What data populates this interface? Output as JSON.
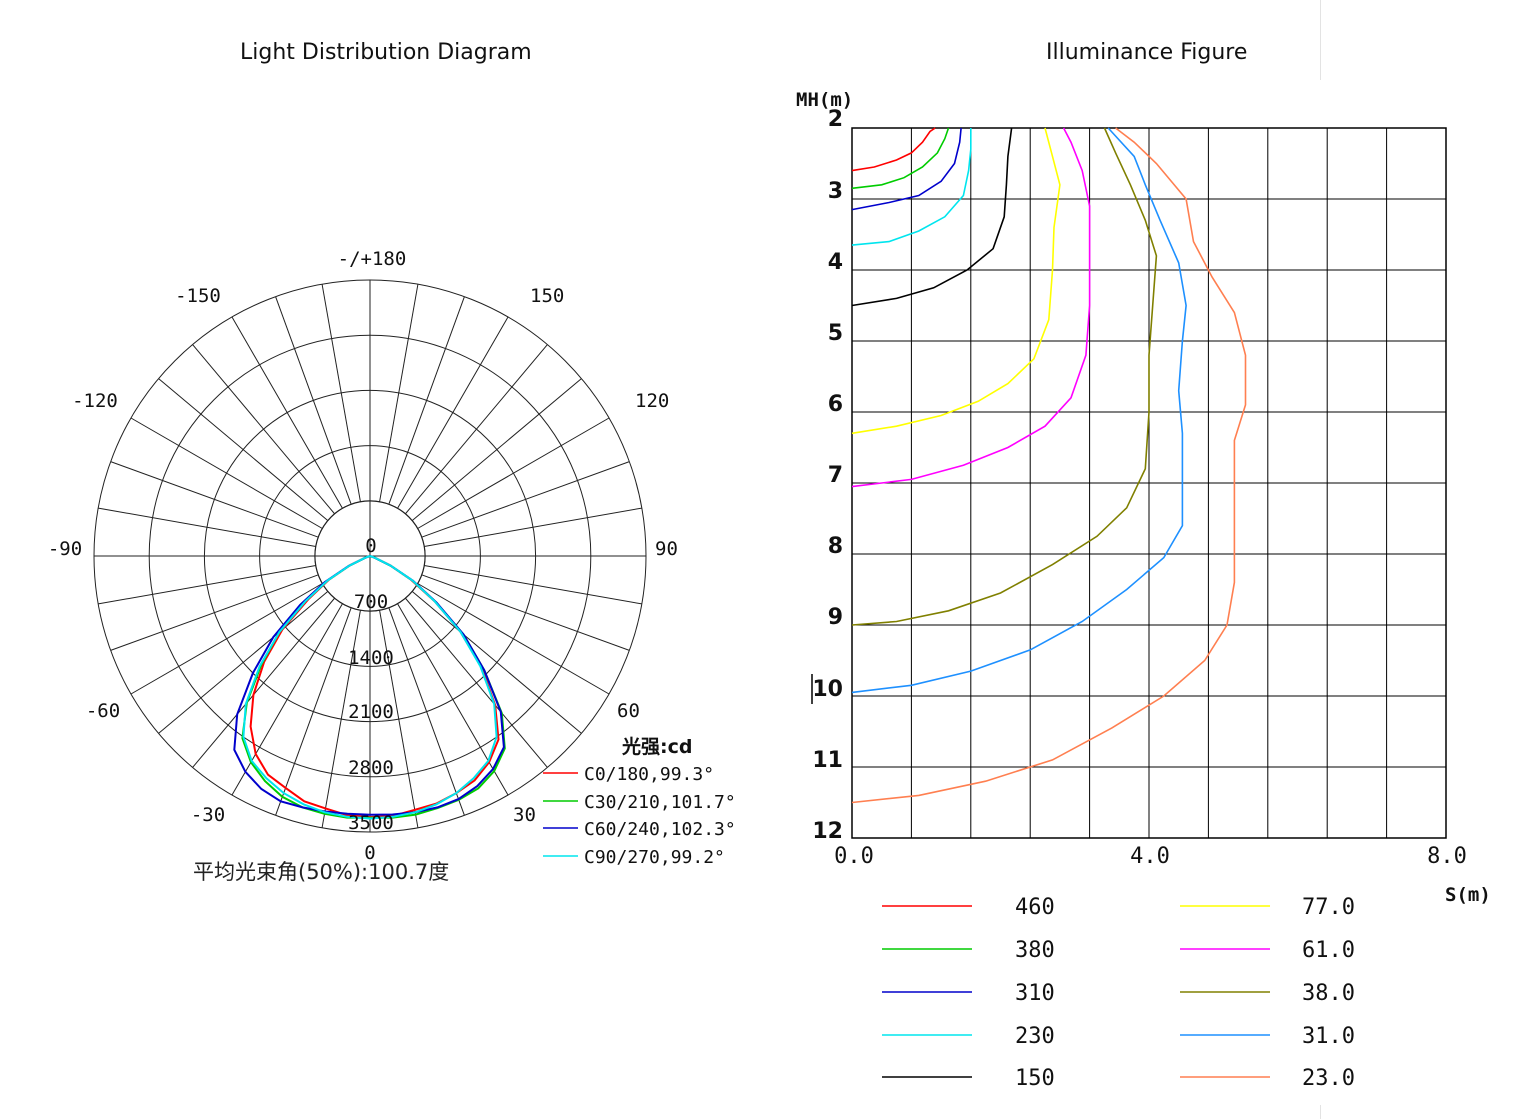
{
  "polar": {
    "title": "Light Distribution Diagram",
    "angle_labels": [
      "-/+180",
      "150",
      "120",
      "90",
      "60",
      "30",
      "0",
      "-30",
      "-60",
      "-90",
      "-120",
      "-150"
    ],
    "ring_labels": [
      "0",
      "700",
      "1400",
      "2100",
      "2800",
      "3500"
    ],
    "legend_title": "光强:cd",
    "legend": [
      "C0/180,99.3°",
      "C30/210,101.7°",
      "C60/240,102.3°",
      "C90/270,99.2°"
    ],
    "footer": "平均光束角(50%):100.7度"
  },
  "illuminance": {
    "title": "Illuminance Figure",
    "y_axis_label": "MH(m)",
    "x_axis_label": "S(m)",
    "y_tick_labels": [
      "2",
      "3",
      "4",
      "5",
      "6",
      "7",
      "8",
      "9",
      "10",
      "11",
      "12"
    ],
    "x_tick_labels": [
      "0.0",
      "4.0",
      "8.0"
    ],
    "legend": [
      "460",
      "380",
      "310",
      "230",
      "150",
      "77.0",
      "61.0",
      "38.0",
      "31.0",
      "23.0"
    ]
  },
  "chart_data": [
    {
      "type": "polar",
      "title": "Light Distribution Diagram",
      "unit": "cd",
      "radial_range": [
        0,
        3500
      ],
      "radial_ticks": [
        0,
        700,
        1400,
        2100,
        2800,
        3500
      ],
      "angle_ticks": [
        -180,
        -150,
        -120,
        -90,
        -60,
        -30,
        0,
        30,
        60,
        90,
        120,
        150,
        180
      ],
      "series": [
        {
          "name": "C0/180,99.3°",
          "color": "#ff0000",
          "beam_angle": 99.3,
          "angles": [
            0,
            5,
            10,
            15,
            20,
            25,
            30,
            35,
            40,
            45,
            50,
            55,
            60,
            65,
            70
          ],
          "left": [
            3310,
            3300,
            3250,
            3220,
            3130,
            3060,
            2900,
            2640,
            2300,
            1900,
            1450,
            950,
            600,
            280,
            60
          ],
          "right": [
            3310,
            3310,
            3270,
            3250,
            3200,
            3140,
            3020,
            2840,
            2470,
            2000,
            1500,
            1000,
            600,
            280,
            60
          ]
        },
        {
          "name": "C30/210,101.7°",
          "color": "#00cc00",
          "beam_angle": 101.7,
          "angles": [
            0,
            5,
            10,
            15,
            20,
            25,
            30,
            35,
            40,
            45,
            50,
            55,
            60,
            65,
            70
          ],
          "left": [
            3320,
            3330,
            3320,
            3300,
            3250,
            3150,
            3020,
            2820,
            2430,
            1950,
            1500,
            1000,
            620,
            290,
            60
          ],
          "right": [
            3320,
            3330,
            3330,
            3310,
            3290,
            3250,
            3150,
            2980,
            2600,
            2050,
            1550,
            1020,
            620,
            290,
            60
          ]
        },
        {
          "name": "C60/240,102.3°",
          "color": "#0000cc",
          "beam_angle": 102.3,
          "angles": [
            0,
            5,
            10,
            15,
            20,
            25,
            30,
            35,
            40,
            45,
            50,
            55,
            60,
            65,
            70
          ],
          "left": [
            3280,
            3280,
            3290,
            3300,
            3310,
            3260,
            3160,
            3000,
            2620,
            2100,
            1600,
            1080,
            660,
            300,
            60
          ],
          "right": [
            3280,
            3290,
            3300,
            3300,
            3280,
            3220,
            3120,
            2960,
            2580,
            2050,
            1550,
            1030,
            630,
            290,
            60
          ]
        },
        {
          "name": "C90/270,99.2°",
          "color": "#00e5ee",
          "beam_angle": 99.2,
          "angles": [
            0,
            5,
            10,
            15,
            20,
            25,
            30,
            35,
            40,
            45,
            50,
            55,
            60,
            65,
            70
          ],
          "left": [
            3330,
            3320,
            3300,
            3260,
            3200,
            3110,
            3000,
            2800,
            2450,
            1980,
            1500,
            1000,
            620,
            290,
            60
          ],
          "right": [
            3330,
            3320,
            3300,
            3260,
            3200,
            3110,
            3000,
            2800,
            2450,
            1980,
            1500,
            1000,
            620,
            290,
            60
          ]
        }
      ],
      "legend_position": "bottom-right",
      "grid": true
    },
    {
      "type": "line",
      "title": "Illuminance Figure",
      "xlabel": "S(m)",
      "ylabel": "MH(m)",
      "xlim": [
        0,
        8
      ],
      "ylim": [
        2,
        12
      ],
      "y_inverted": true,
      "grid": true,
      "series": [
        {
          "name": "460",
          "color": "#ff0000",
          "points": [
            [
              0,
              2.6
            ],
            [
              0.3,
              2.55
            ],
            [
              0.6,
              2.45
            ],
            [
              0.8,
              2.35
            ],
            [
              0.95,
              2.2
            ],
            [
              1.05,
              2.05
            ],
            [
              1.12,
              2
            ]
          ]
        },
        {
          "name": "380",
          "color": "#00cc00",
          "points": [
            [
              0,
              2.85
            ],
            [
              0.4,
              2.8
            ],
            [
              0.7,
              2.7
            ],
            [
              0.95,
              2.55
            ],
            [
              1.15,
              2.35
            ],
            [
              1.25,
              2.15
            ],
            [
              1.3,
              2
            ]
          ]
        },
        {
          "name": "310",
          "color": "#0000cc",
          "points": [
            [
              0,
              3.15
            ],
            [
              0.5,
              3.05
            ],
            [
              0.9,
              2.95
            ],
            [
              1.2,
              2.75
            ],
            [
              1.38,
              2.5
            ],
            [
              1.45,
              2.2
            ],
            [
              1.47,
              2
            ]
          ]
        },
        {
          "name": "230",
          "color": "#00e5ee",
          "points": [
            [
              0,
              3.65
            ],
            [
              0.5,
              3.6
            ],
            [
              0.9,
              3.45
            ],
            [
              1.25,
              3.25
            ],
            [
              1.5,
              2.95
            ],
            [
              1.57,
              2.6
            ],
            [
              1.6,
              2.3
            ],
            [
              1.6,
              2
            ]
          ]
        },
        {
          "name": "150",
          "color": "#000000",
          "points": [
            [
              0,
              4.5
            ],
            [
              0.6,
              4.4
            ],
            [
              1.1,
              4.25
            ],
            [
              1.55,
              4
            ],
            [
              1.9,
              3.7
            ],
            [
              2.05,
              3.25
            ],
            [
              2.08,
              2.8
            ],
            [
              2.1,
              2.4
            ],
            [
              2.15,
              2
            ]
          ]
        },
        {
          "name": "77.0",
          "color": "#ffff00",
          "points": [
            [
              0,
              6.3
            ],
            [
              0.6,
              6.2
            ],
            [
              1.2,
              6.05
            ],
            [
              1.7,
              5.85
            ],
            [
              2.1,
              5.6
            ],
            [
              2.45,
              5.25
            ],
            [
              2.65,
              4.7
            ],
            [
              2.7,
              4
            ],
            [
              2.72,
              3.4
            ],
            [
              2.8,
              2.8
            ],
            [
              2.7,
              2.4
            ],
            [
              2.6,
              2
            ]
          ]
        },
        {
          "name": "61.0",
          "color": "#ff00ff",
          "points": [
            [
              0,
              7.05
            ],
            [
              0.8,
              6.95
            ],
            [
              1.5,
              6.75
            ],
            [
              2.1,
              6.5
            ],
            [
              2.6,
              6.2
            ],
            [
              2.95,
              5.8
            ],
            [
              3.15,
              5.2
            ],
            [
              3.2,
              4.5
            ],
            [
              3.2,
              3.8
            ],
            [
              3.2,
              3.1
            ],
            [
              3.1,
              2.6
            ],
            [
              2.95,
              2.2
            ],
            [
              2.85,
              2
            ]
          ]
        },
        {
          "name": "38.0",
          "color": "#808000",
          "points": [
            [
              0,
              9
            ],
            [
              0.6,
              8.95
            ],
            [
              1.3,
              8.8
            ],
            [
              2.0,
              8.55
            ],
            [
              2.7,
              8.15
            ],
            [
              3.3,
              7.75
            ],
            [
              3.7,
              7.35
            ],
            [
              3.95,
              6.8
            ],
            [
              4.0,
              6
            ],
            [
              4.0,
              5.2
            ],
            [
              4.05,
              4.5
            ],
            [
              4.1,
              3.8
            ],
            [
              3.95,
              3.3
            ],
            [
              3.75,
              2.8
            ],
            [
              3.55,
              2.35
            ],
            [
              3.4,
              2
            ]
          ]
        },
        {
          "name": "31.0",
          "color": "#1e90ff",
          "points": [
            [
              0,
              9.95
            ],
            [
              0.8,
              9.85
            ],
            [
              1.6,
              9.65
            ],
            [
              2.4,
              9.35
            ],
            [
              3.1,
              8.95
            ],
            [
              3.7,
              8.5
            ],
            [
              4.2,
              8.05
            ],
            [
              4.45,
              7.6
            ],
            [
              4.45,
              7
            ],
            [
              4.45,
              6.3
            ],
            [
              4.4,
              5.7
            ],
            [
              4.45,
              5
            ],
            [
              4.5,
              4.5
            ],
            [
              4.4,
              3.9
            ],
            [
              4.15,
              3.3
            ],
            [
              3.95,
              2.8
            ],
            [
              3.8,
              2.4
            ],
            [
              3.45,
              2
            ]
          ]
        },
        {
          "name": "23.0",
          "color": "#ff7f50",
          "points": [
            [
              0,
              11.5
            ],
            [
              0.9,
              11.4
            ],
            [
              1.8,
              11.2
            ],
            [
              2.7,
              10.9
            ],
            [
              3.5,
              10.45
            ],
            [
              4.2,
              10
            ],
            [
              4.75,
              9.5
            ],
            [
              5.05,
              9
            ],
            [
              5.15,
              8.4
            ],
            [
              5.15,
              7.7
            ],
            [
              5.15,
              7
            ],
            [
              5.15,
              6.4
            ],
            [
              5.3,
              5.9
            ],
            [
              5.3,
              5.2
            ],
            [
              5.15,
              4.6
            ],
            [
              4.85,
              4.1
            ],
            [
              4.6,
              3.6
            ],
            [
              4.5,
              3
            ],
            [
              4.1,
              2.5
            ],
            [
              3.8,
              2.2
            ],
            [
              3.55,
              2
            ]
          ]
        }
      ]
    }
  ]
}
